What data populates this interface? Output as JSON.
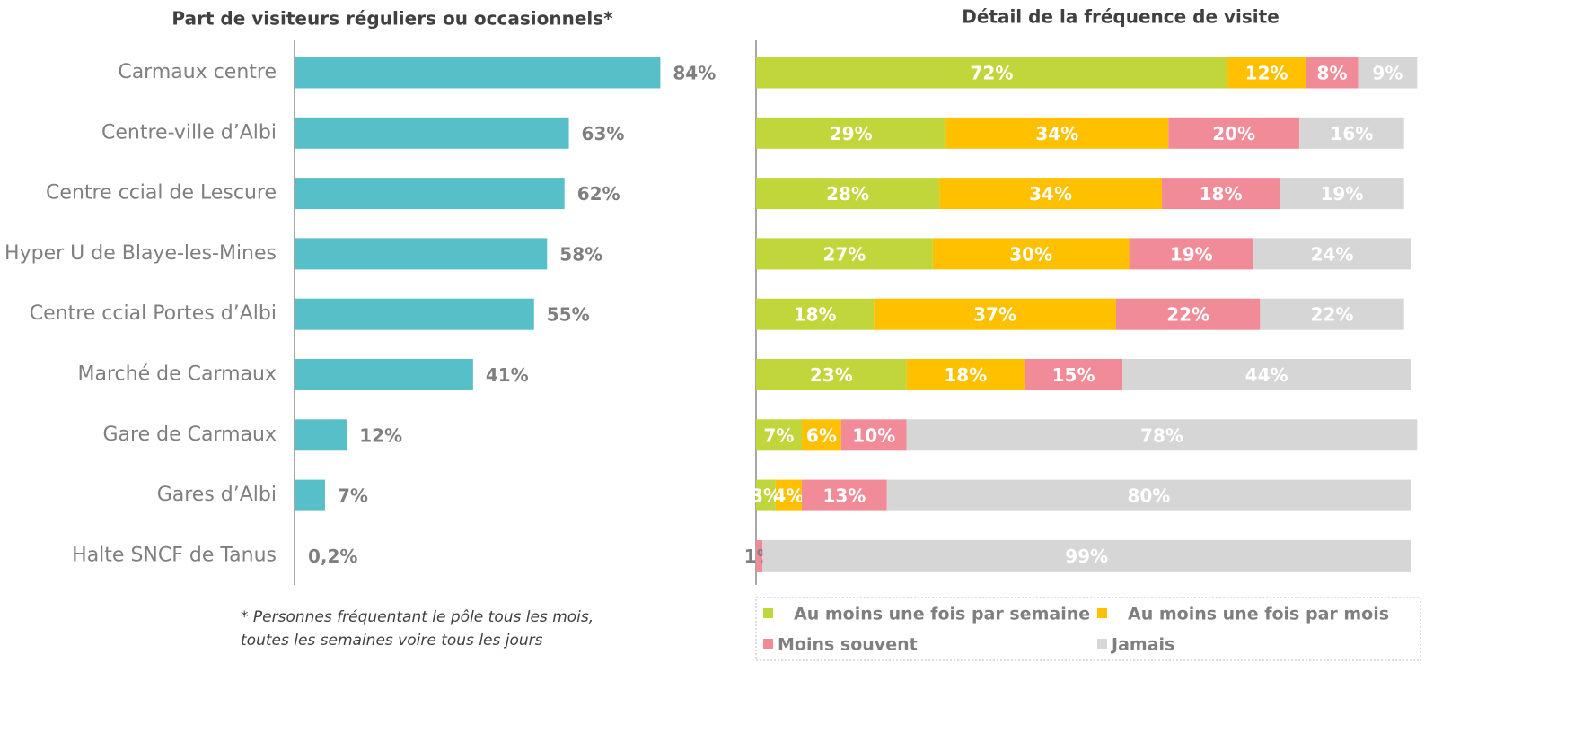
{
  "chart_data": [
    {
      "type": "bar",
      "orientation": "horizontal",
      "title": "Part de visiteurs réguliers ou occasionnels*",
      "categories": [
        "Carmaux centre",
        "Centre-ville d’Albi",
        "Centre ccial de Lescure",
        "Hyper U de Blaye-les-Mines",
        "Centre ccial Portes d’Albi",
        "Marché de Carmaux",
        "Gare de Carmaux",
        "Gares d’Albi",
        "Halte SNCF de Tanus"
      ],
      "values": [
        84,
        63,
        62,
        58,
        55,
        41,
        12,
        7,
        0.2
      ],
      "value_labels": [
        "84%",
        "63%",
        "62%",
        "58%",
        "55%",
        "41%",
        "12%",
        "7%",
        "0,2%"
      ],
      "color": "#56bfc8",
      "xlim": [
        0,
        100
      ],
      "footnote": [
        "* Personnes fréquentant le pôle tous les mois,",
        "toutes les semaines voire tous les jours"
      ]
    },
    {
      "type": "stacked_bar",
      "orientation": "horizontal",
      "title": "Détail de la fréquence de visite",
      "xlim": [
        0,
        100
      ],
      "legend": "bottom",
      "series": [
        {
          "name": "Au moins une fois par semaine",
          "color": "#c1d63a",
          "values": [
            72,
            29,
            28,
            27,
            18,
            23,
            7,
            3,
            null
          ],
          "value_labels": [
            "72%",
            "29%",
            "28%",
            "27%",
            "18%",
            "23%",
            "7%",
            "3%",
            null
          ]
        },
        {
          "name": "Au moins une fois par mois",
          "color": "#ffc000",
          "values": [
            12,
            34,
            34,
            30,
            37,
            18,
            6,
            4,
            null
          ],
          "value_labels": [
            "12%",
            "34%",
            "34%",
            "30%",
            "37%",
            "18%",
            "6%",
            "4%",
            null
          ]
        },
        {
          "name": "Moins souvent",
          "color": "#f28b98",
          "values": [
            8,
            20,
            18,
            19,
            22,
            15,
            10,
            13,
            1
          ],
          "value_labels": [
            "8%",
            "20%",
            "18%",
            "19%",
            "22%",
            "15%",
            "10%",
            "13%",
            "1%"
          ]
        },
        {
          "name": "Jamais",
          "color": "#d6d6d6",
          "values": [
            9,
            16,
            19,
            24,
            22,
            44,
            78,
            80,
            99
          ],
          "value_labels": [
            "9%",
            "16%",
            "19%",
            "24%",
            "22%",
            "44%",
            "78%",
            "80%",
            "99%"
          ]
        }
      ]
    }
  ]
}
